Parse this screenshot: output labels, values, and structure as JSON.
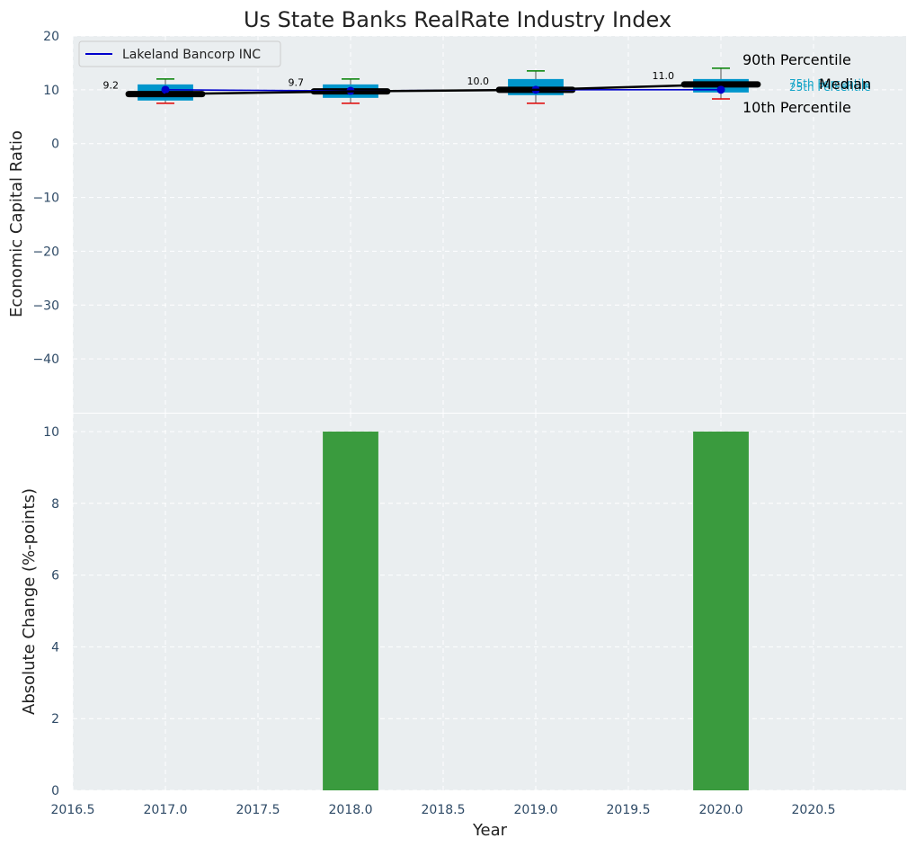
{
  "chart_data": [
    {
      "type": "box",
      "title": "Us State Banks RealRate Industry Index",
      "xlabel": "",
      "ylabel": "Economic Capital Ratio",
      "ylim": [
        -50,
        20
      ],
      "yticks": [
        20,
        10,
        0,
        -10,
        -20,
        -30,
        -40
      ],
      "ytick_labels": [
        "20",
        "10",
        "0",
        "−10",
        "−20",
        "−30",
        "−40"
      ],
      "grid": true,
      "legend": {
        "position": "top-left",
        "entries": [
          "Lakeland Bancorp INC"
        ]
      },
      "boxes": [
        {
          "x": 2017,
          "p10": 7.5,
          "p25": 8.0,
          "median": 9.2,
          "p75": 11.0,
          "p90": 12.0
        },
        {
          "x": 2018,
          "p10": 7.5,
          "p25": 8.5,
          "median": 9.7,
          "p75": 11.0,
          "p90": 12.0
        },
        {
          "x": 2019,
          "p10": 7.5,
          "p25": 9.0,
          "median": 10.0,
          "p75": 12.0,
          "p90": 13.5
        },
        {
          "x": 2020,
          "p10": 8.3,
          "p25": 9.5,
          "median": 11.0,
          "p75": 12.0,
          "p90": 14.0
        }
      ],
      "median_labels": [
        "9.2",
        "9.7",
        "10.0",
        "11.0"
      ],
      "series": [
        {
          "name": "Lakeland Bancorp INC",
          "color": "#0000cc",
          "x": [
            2017,
            2018,
            2019,
            2020
          ],
          "values": [
            10.0,
            9.8,
            10.0,
            10.0
          ]
        },
        {
          "name": "Median",
          "color": "#000000",
          "x": [
            2017,
            2018,
            2019,
            2020
          ],
          "values": [
            9.2,
            9.7,
            10.0,
            11.0
          ]
        }
      ],
      "annotations": {
        "p90": "90th Percentile",
        "median": "Median",
        "p10": "10th Percentile",
        "p75": "75th Percentile",
        "p25": "25th Percentile"
      }
    },
    {
      "type": "bar",
      "xlabel": "Year",
      "ylabel": "Absolute Change (%-points)",
      "ylim": [
        0,
        10.5
      ],
      "yticks": [
        0,
        2,
        4,
        6,
        8,
        10
      ],
      "ytick_labels": [
        "0",
        "2",
        "4",
        "6",
        "8",
        "10"
      ],
      "xlim": [
        2016.5,
        2021.0
      ],
      "xticks": [
        2016.5,
        2017.0,
        2017.5,
        2018.0,
        2018.5,
        2019.0,
        2019.5,
        2020.0,
        2020.5
      ],
      "xtick_labels": [
        "2016.5",
        "2017.0",
        "2017.5",
        "2018.0",
        "2018.5",
        "2019.0",
        "2019.5",
        "2020.0",
        "2020.5"
      ],
      "grid": true,
      "x": [
        2018,
        2020
      ],
      "values": [
        10,
        10
      ],
      "bar_width": 0.3,
      "color": "#3a9b3e"
    }
  ],
  "colors": {
    "background": "#eaeef0",
    "grid": "#ffffff",
    "box": "#0096cc",
    "p90": "#008000",
    "p10": "#e00000",
    "tick_text": "#2e4a66",
    "annotation_teal": "#16a5c8"
  }
}
